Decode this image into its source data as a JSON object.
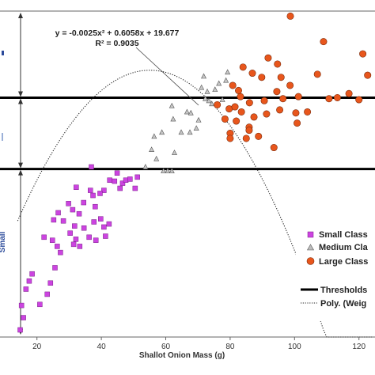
{
  "chart_data": {
    "type": "scatter",
    "xlabel": "Shallot Onion Mass (g)",
    "x_ticks": [
      "20",
      "40",
      "60",
      "80",
      "100",
      "120"
    ],
    "xlim": [
      10,
      124
    ],
    "ylim": [
      2,
      34
    ],
    "equation": "y = -0.0025x² + 0.6058x + 19.677",
    "r_squared": "R² = 0.9035",
    "side_label": "Small",
    "thresholds": [
      18.5,
      25.5
    ],
    "legend": {
      "small": "Small Class",
      "medium": "Medium Cla",
      "large": "Large Class",
      "thresholds": "Thresholds",
      "poly": "Poly. (Weig"
    },
    "colors": {
      "small": "#cc44e0",
      "medium": "#9a9a9a",
      "large": "#e8561c",
      "threshold": "#000000",
      "arrow": "#333333"
    },
    "series": [
      {
        "name": "Small Class",
        "marker": "square",
        "points": [
          [
            14.8,
            2.7
          ],
          [
            15.8,
            3.9
          ],
          [
            15.2,
            5.1
          ],
          [
            16.6,
            6.7
          ],
          [
            17.6,
            7.5
          ],
          [
            18.5,
            8.2
          ],
          [
            20.9,
            5.2
          ],
          [
            23.2,
            6.2
          ],
          [
            24.2,
            7.3
          ],
          [
            25.6,
            8.8
          ],
          [
            26.3,
            10.9
          ],
          [
            27.3,
            10.3
          ],
          [
            24.8,
            11.5
          ],
          [
            22.2,
            11.8
          ],
          [
            25.2,
            13.5
          ],
          [
            26.6,
            14.2
          ],
          [
            28.2,
            13.4
          ],
          [
            30.3,
            12.2
          ],
          [
            31.4,
            11.1
          ],
          [
            32.1,
            11.6
          ],
          [
            33.3,
            10.9
          ],
          [
            31.7,
            12.9
          ],
          [
            34.6,
            12.7
          ],
          [
            36.2,
            11.8
          ],
          [
            37.7,
            13.3
          ],
          [
            38.3,
            11.5
          ],
          [
            39.8,
            13.6
          ],
          [
            40.8,
            12.8
          ],
          [
            41.3,
            11.9
          ],
          [
            42.4,
            13.1
          ],
          [
            38.1,
            14.8
          ],
          [
            36.6,
            16.4
          ],
          [
            40.8,
            16.4
          ],
          [
            44.1,
            17.3
          ],
          [
            45.8,
            16.6
          ],
          [
            46.6,
            17.1
          ],
          [
            47.6,
            17.4
          ],
          [
            48.9,
            17.5
          ],
          [
            50.5,
            16.6
          ],
          [
            51.2,
            17.7
          ],
          [
            44.9,
            18.1
          ],
          [
            32.2,
            16.7
          ],
          [
            36.9,
            18.7
          ],
          [
            42.6,
            17.4
          ],
          [
            39.6,
            16.1
          ],
          [
            37.4,
            15.9
          ],
          [
            34.5,
            15.2
          ],
          [
            31.1,
            14.5
          ],
          [
            29.8,
            15.1
          ],
          [
            33.1,
            14.1
          ]
        ]
      },
      {
        "name": "Medium Cla",
        "marker": "triangle",
        "points": [
          [
            53.7,
            18.7
          ],
          [
            57.1,
            19.5
          ],
          [
            59.3,
            18.3
          ],
          [
            60.6,
            18.3
          ],
          [
            61.9,
            18.3
          ],
          [
            55.6,
            20.4
          ],
          [
            62.7,
            20.1
          ],
          [
            58.8,
            22.1
          ],
          [
            64.8,
            22.1
          ],
          [
            67.5,
            22.1
          ],
          [
            62.3,
            23.4
          ],
          [
            61.9,
            24.7
          ],
          [
            66.6,
            24.1
          ],
          [
            67.8,
            24.0
          ],
          [
            69.5,
            22.5
          ],
          [
            70.2,
            23.3
          ],
          [
            72.3,
            25.4
          ],
          [
            74.3,
            24.9
          ],
          [
            71.1,
            26.5
          ],
          [
            72.9,
            26.1
          ],
          [
            75.3,
            26.3
          ],
          [
            77.6,
            25.3
          ],
          [
            79.2,
            28.0
          ],
          [
            76.5,
            26.9
          ],
          [
            71.8,
            27.6
          ],
          [
            73.4,
            25.2
          ],
          [
            78.7,
            27.2
          ],
          [
            56.4,
            21.7
          ]
        ]
      },
      {
        "name": "Large Class",
        "marker": "circle",
        "points": [
          [
            98.7,
            33.5
          ],
          [
            109.0,
            31.0
          ],
          [
            121.2,
            29.8
          ],
          [
            91.8,
            29.4
          ],
          [
            94.7,
            28.8
          ],
          [
            95.8,
            27.5
          ],
          [
            98.6,
            26.7
          ],
          [
            101.2,
            25.6
          ],
          [
            107.1,
            27.8
          ],
          [
            110.7,
            25.4
          ],
          [
            113.3,
            25.5
          ],
          [
            116.9,
            25.9
          ],
          [
            120.0,
            25.3
          ],
          [
            122.7,
            27.7
          ],
          [
            84.0,
            28.5
          ],
          [
            86.9,
            27.9
          ],
          [
            89.8,
            27.5
          ],
          [
            80.8,
            26.7
          ],
          [
            83.2,
            25.6
          ],
          [
            86.0,
            25.0
          ],
          [
            90.6,
            25.2
          ],
          [
            94.5,
            26.1
          ],
          [
            76.0,
            24.8
          ],
          [
            79.7,
            24.4
          ],
          [
            81.5,
            24.6
          ],
          [
            83.5,
            24.1
          ],
          [
            87.4,
            23.6
          ],
          [
            91.3,
            23.9
          ],
          [
            95.4,
            24.3
          ],
          [
            100.4,
            24.0
          ],
          [
            104.0,
            24.1
          ],
          [
            78.4,
            23.4
          ],
          [
            81.9,
            23.2
          ],
          [
            85.9,
            22.6
          ],
          [
            80.0,
            22.0
          ],
          [
            80.0,
            21.5
          ],
          [
            85.0,
            21.5
          ],
          [
            88.8,
            21.7
          ],
          [
            85.9,
            22.3
          ],
          [
            93.6,
            20.6
          ],
          [
            96.4,
            25.4
          ],
          [
            100.8,
            23.0
          ],
          [
            82.6,
            26.2
          ]
        ]
      }
    ],
    "trendline": {
      "coefficients": [
        -0.0025,
        0.6058,
        19.677
      ],
      "style": "dotted"
    }
  }
}
